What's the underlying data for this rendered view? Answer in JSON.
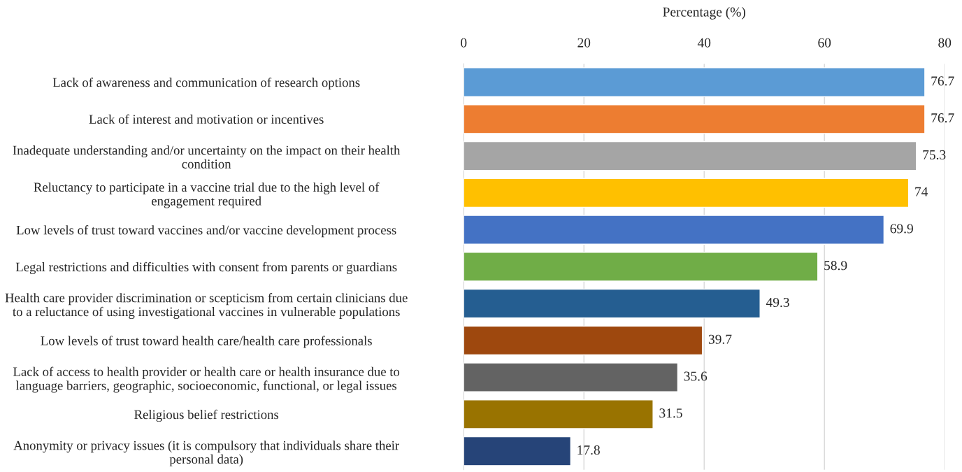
{
  "chart_data": {
    "type": "bar",
    "orientation": "horizontal",
    "xlabel": "Percentage (%)",
    "categories": [
      "Lack of awareness and communication of research options",
      "Lack of interest and motivation or incentives",
      "Inadequate understanding and/or uncertainty on the impact on their health\ncondition",
      "Reluctancy to participate in a vaccine trial due to the high level of\nengagement required",
      "Low levels of trust toward vaccines and/or vaccine development process",
      "Legal restrictions and difficulties with consent from parents or guardians",
      "Health care provider discrimination or scepticism from certain clinicians due\nto a reluctance of using investigational vaccines in vulnerable populations",
      "Low levels of trust toward health care/health care professionals",
      "Lack of access to health provider or health care or health insurance due to\nlanguage barriers, geographic, socioeconomic, functional, or legal issues",
      "Religious belief restrictions",
      "Anonymity or privacy issues (it is compulsory that individuals share their\npersonal data)"
    ],
    "values": [
      76.7,
      76.7,
      75.3,
      74,
      69.9,
      58.9,
      49.3,
      39.7,
      35.6,
      31.5,
      17.8
    ],
    "colors": [
      "#5b9bd5",
      "#ed7d31",
      "#a5a5a5",
      "#ffc000",
      "#4472c4",
      "#70ad47",
      "#255e91",
      "#9e480e",
      "#636363",
      "#997300",
      "#264478"
    ],
    "data_labels": true,
    "xlim": [
      0,
      80
    ],
    "xticks": [
      0,
      20,
      40,
      60,
      80
    ],
    "grid": "x",
    "legend": false
  }
}
